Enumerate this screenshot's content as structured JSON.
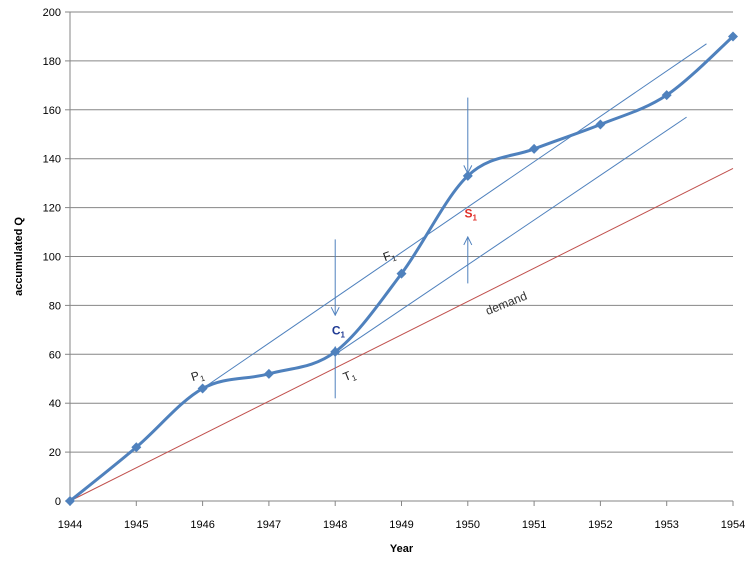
{
  "chart_data": {
    "type": "line",
    "xlabel": "Year",
    "ylabel": "accumulated Q",
    "xlim": [
      1944,
      1954
    ],
    "ylim": [
      0,
      200
    ],
    "x_ticks": [
      1944,
      1945,
      1946,
      1947,
      1948,
      1949,
      1950,
      1951,
      1952,
      1953,
      1954
    ],
    "y_ticks": [
      0,
      20,
      40,
      60,
      80,
      100,
      120,
      140,
      160,
      180,
      200
    ],
    "grid": "horizontal",
    "colors": {
      "production": "#4F81BD",
      "demand": "#C0504D",
      "guide": "#4F81BD",
      "axis": "#868686",
      "grid": "#868686",
      "label_c1": "#1F3A93",
      "label_s1": "#E0302A"
    },
    "series": [
      {
        "x": [
          1944,
          1945,
          1946,
          1947,
          1948,
          1949,
          1950,
          1951,
          1952,
          1953,
          1954
        ],
        "values": [
          0,
          22,
          46,
          52,
          61,
          93,
          133,
          144,
          154,
          166,
          190
        ]
      },
      {
        "name": "demand",
        "x": [
          1944,
          1954
        ],
        "values": [
          0,
          136
        ]
      }
    ],
    "reference_lines": [
      {
        "x": [
          1946,
          1953.6
        ],
        "values": [
          46,
          187
        ]
      },
      {
        "x": [
          1948,
          1953.3
        ],
        "values": [
          60,
          157
        ]
      }
    ],
    "arrows": [
      {
        "x": 1948,
        "from": 107,
        "to": 76
      },
      {
        "x": 1948,
        "from": 42,
        "to": 63
      },
      {
        "x": 1950,
        "from": 165,
        "to": 134
      },
      {
        "x": 1950,
        "from": 89,
        "to": 108
      }
    ],
    "annotations": [
      {
        "main": "P",
        "sub": "1",
        "x": 1945.85,
        "y": 49,
        "color": "#222222",
        "rotate": -18
      },
      {
        "main": "C",
        "sub": "1",
        "x": 1947.95,
        "y": 68,
        "color": "#1F3A93",
        "bold": true,
        "rotate": 0
      },
      {
        "main": "T",
        "sub": "1",
        "x": 1948.15,
        "y": 49,
        "color": "#222222",
        "rotate": -22
      },
      {
        "main": "F",
        "sub": "1",
        "x": 1948.75,
        "y": 98,
        "color": "#222222",
        "rotate": -20
      },
      {
        "main": "S",
        "sub": "1",
        "x": 1949.95,
        "y": 116,
        "color": "#E0302A",
        "bold": true,
        "rotate": 0
      },
      {
        "main": "demand",
        "sub": "",
        "x": 1950.3,
        "y": 76,
        "color": "#333333",
        "rotate": -22
      }
    ]
  }
}
